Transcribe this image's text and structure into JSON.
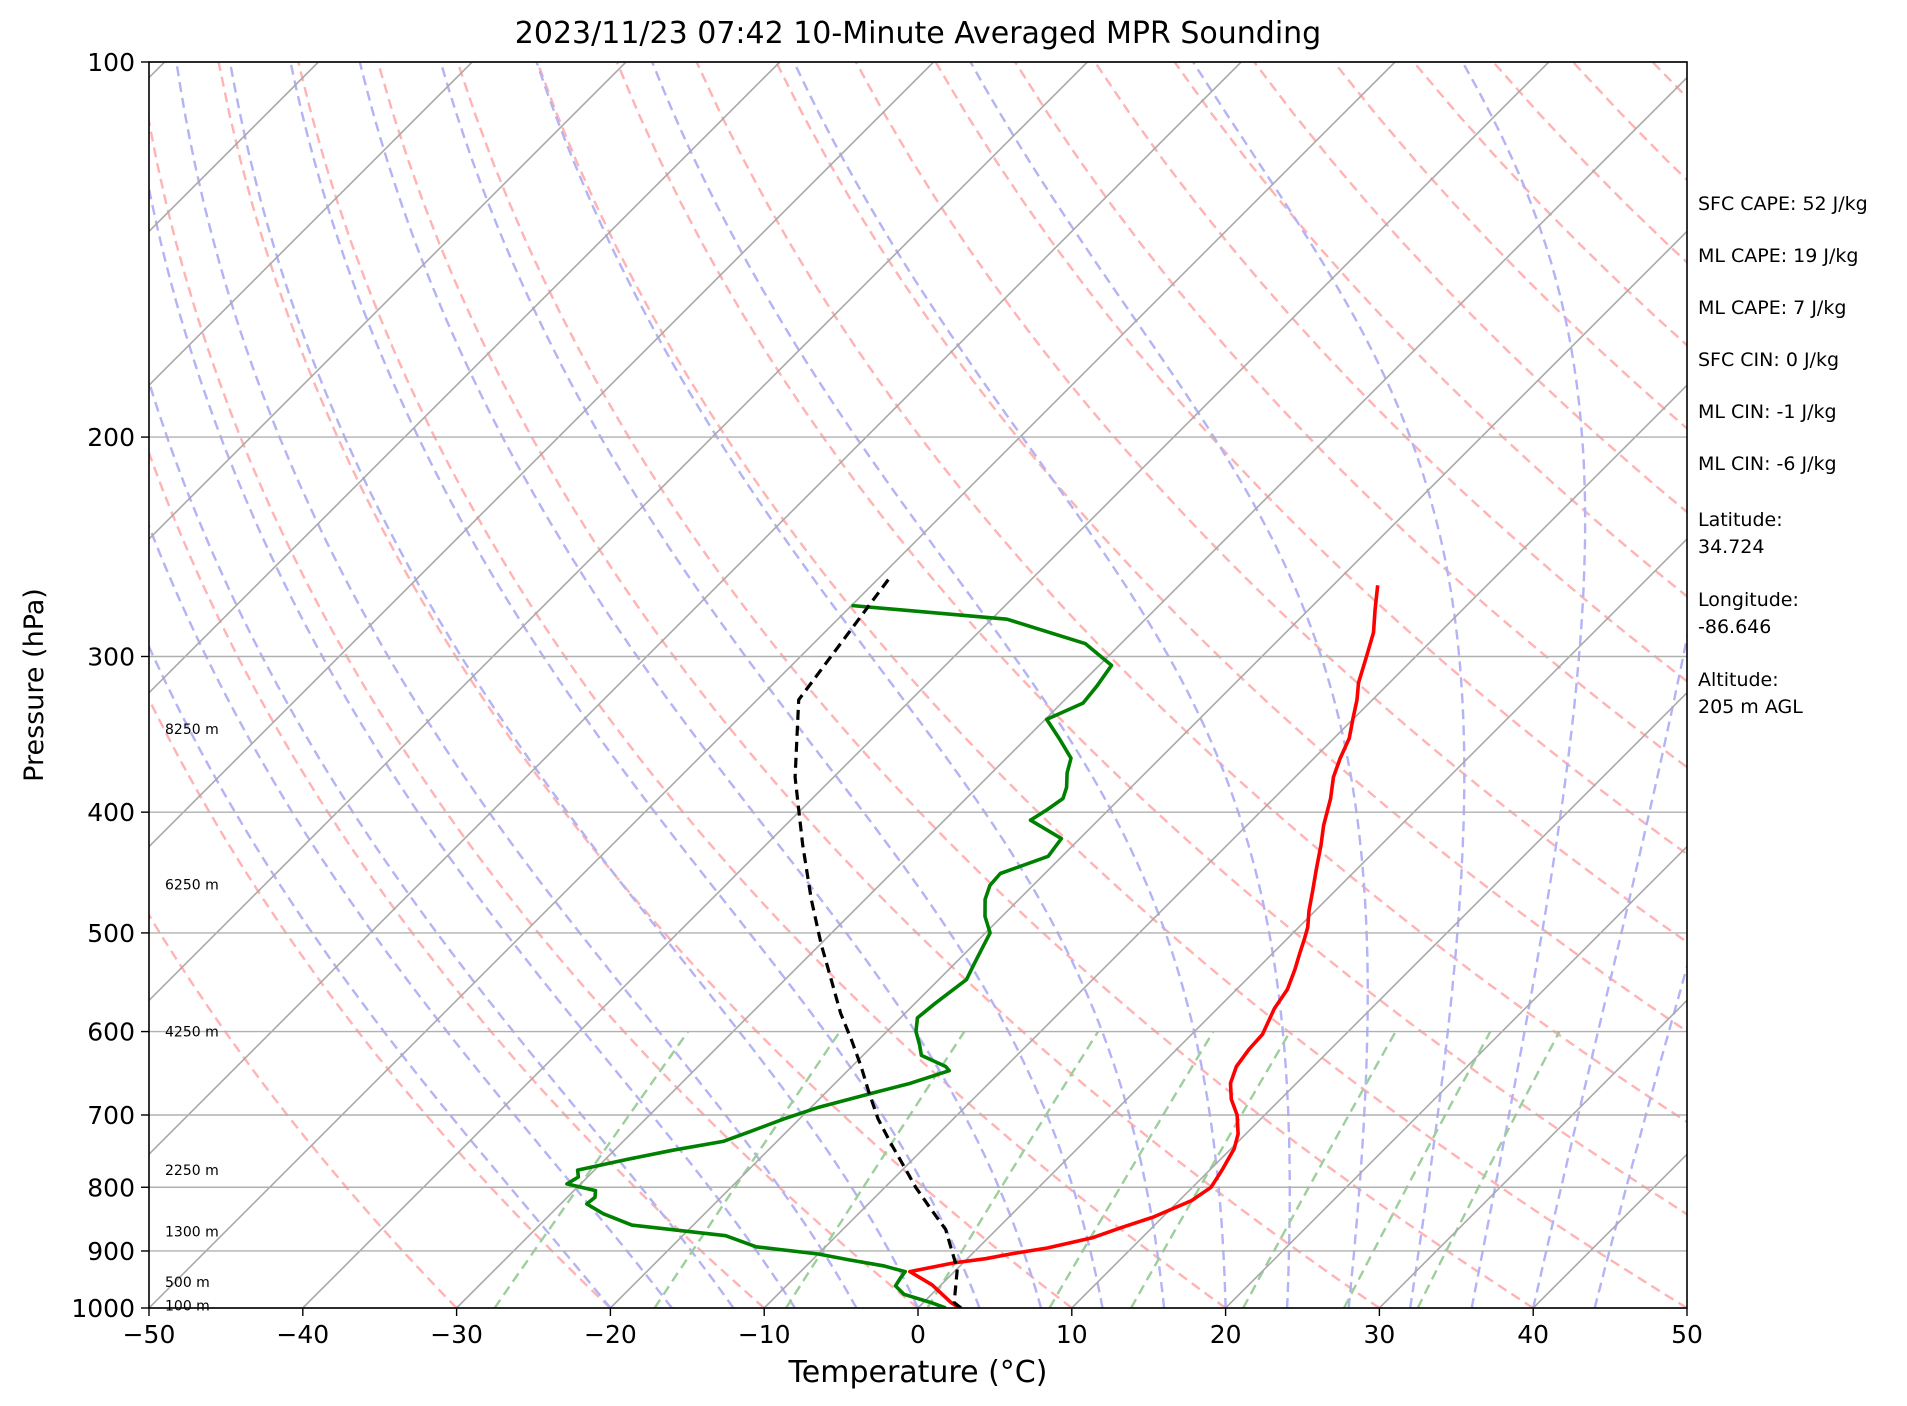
{
  "chart_data": {
    "type": "line",
    "title": "2023/11/23 07:42 10-Minute Averaged MPR Sounding",
    "xlabel": "Temperature (°C)",
    "ylabel": "Pressure (hPa)",
    "xlim": [
      -50,
      50
    ],
    "ylim": [
      1000,
      100
    ],
    "y_scale": "log",
    "x_ticks": [
      -50,
      -40,
      -30,
      -20,
      -10,
      0,
      10,
      20,
      30,
      40,
      50
    ],
    "x_tick_labels": [
      "−50",
      "−40",
      "−30",
      "−20",
      "−10",
      "0",
      "10",
      "20",
      "30",
      "40",
      "50"
    ],
    "y_ticks": [
      100,
      200,
      300,
      400,
      500,
      600,
      700,
      800,
      900,
      1000
    ],
    "y_tick_labels": [
      "100",
      "200",
      "300",
      "400",
      "500",
      "600",
      "700",
      "800",
      "900",
      "1000"
    ],
    "grid": true,
    "background_lines": {
      "isotherm_color": "#a9a9a9",
      "dry_adiabat_color": "#ffb3b3",
      "moist_adiabat_color": "#b3b3f5",
      "mixing_ratio_color": "#9ccf9c"
    },
    "series": [
      {
        "color": "#ff0000",
        "points": [
          [
            2.7,
            1000
          ],
          [
            1.8,
            990
          ],
          [
            -0.6,
            958
          ],
          [
            -2.9,
            935
          ],
          [
            -0.6,
            920
          ],
          [
            1.2,
            913
          ],
          [
            2.5,
            905
          ],
          [
            4.5,
            895
          ],
          [
            6.8,
            878
          ],
          [
            8.0,
            862
          ],
          [
            9.4,
            845
          ],
          [
            10.8,
            820
          ],
          [
            11.2,
            800
          ],
          [
            10.8,
            775
          ],
          [
            10.2,
            745
          ],
          [
            9.5,
            725
          ],
          [
            8.2,
            700
          ],
          [
            6.8,
            680
          ],
          [
            5.7,
            660
          ],
          [
            5.0,
            640
          ],
          [
            4.7,
            620
          ],
          [
            4.6,
            603
          ],
          [
            3.7,
            575
          ],
          [
            3.3,
            555
          ],
          [
            2.5,
            535
          ],
          [
            1.8,
            520
          ],
          [
            1.1,
            505
          ],
          [
            0.6,
            495
          ],
          [
            -0.4,
            480
          ],
          [
            -1.5,
            462
          ],
          [
            -2.6,
            445
          ],
          [
            -3.9,
            425
          ],
          [
            -5.0,
            410
          ],
          [
            -6.3,
            390
          ],
          [
            -7.5,
            375
          ],
          [
            -8.3,
            362
          ],
          [
            -9.0,
            349
          ],
          [
            -10.0,
            337
          ],
          [
            -11.0,
            325
          ],
          [
            -12.0,
            315
          ],
          [
            -13.2,
            300
          ],
          [
            -14.3,
            287
          ],
          [
            -15.7,
            275
          ],
          [
            -17.1,
            263
          ]
        ]
      },
      {
        "color": "#008000",
        "points": [
          [
            1.8,
            1000
          ],
          [
            0.5,
            990
          ],
          [
            -1.8,
            975
          ],
          [
            -2.9,
            960
          ],
          [
            -3.1,
            945
          ],
          [
            -3.2,
            935
          ],
          [
            -5.0,
            925
          ],
          [
            -7.6,
            915
          ],
          [
            -10.0,
            905
          ],
          [
            -14.5,
            893
          ],
          [
            -17.2,
            875
          ],
          [
            -24.0,
            858
          ],
          [
            -26.6,
            840
          ],
          [
            -28.3,
            825
          ],
          [
            -28.2,
            815
          ],
          [
            -28.6,
            805
          ],
          [
            -30.9,
            795
          ],
          [
            -30.6,
            785
          ],
          [
            -31.1,
            775
          ],
          [
            -28.6,
            760
          ],
          [
            -26.2,
            747
          ],
          [
            -23.5,
            735
          ],
          [
            -22.4,
            722
          ],
          [
            -21.0,
            705
          ],
          [
            -19.5,
            690
          ],
          [
            -16.6,
            670
          ],
          [
            -15.1,
            660
          ],
          [
            -13.4,
            645
          ],
          [
            -13.9,
            640
          ],
          [
            -16.2,
            627
          ],
          [
            -17.0,
            615
          ],
          [
            -18.1,
            600
          ],
          [
            -18.9,
            585
          ],
          [
            -18.7,
            570
          ],
          [
            -18.5,
            560
          ],
          [
            -18.2,
            545
          ],
          [
            -18.7,
            530
          ],
          [
            -19.2,
            515
          ],
          [
            -19.7,
            500
          ],
          [
            -21.1,
            485
          ],
          [
            -22.2,
            470
          ],
          [
            -22.8,
            458
          ],
          [
            -22.9,
            448
          ],
          [
            -20.9,
            434
          ],
          [
            -21.2,
            420
          ],
          [
            -24.4,
            406
          ],
          [
            -24.0,
            398
          ],
          [
            -23.7,
            390
          ],
          [
            -24.2,
            382
          ],
          [
            -25.1,
            372
          ],
          [
            -25.8,
            362
          ],
          [
            -27.7,
            350
          ],
          [
            -29.9,
            337
          ],
          [
            -28.6,
            327
          ],
          [
            -28.8,
            317
          ],
          [
            -29.2,
            305
          ],
          [
            -32.3,
            293
          ],
          [
            -39.0,
            280
          ],
          [
            -50.0,
            273
          ]
        ]
      },
      {
        "color": "#000000",
        "dashed": true,
        "points": [
          [
            2.8,
            1000
          ],
          [
            2.0,
            990
          ],
          [
            0.0,
            930
          ],
          [
            -1.5,
            900
          ],
          [
            -3.3,
            865
          ],
          [
            -5.8,
            830
          ],
          [
            -8.0,
            800
          ],
          [
            -10.1,
            770
          ],
          [
            -12.3,
            740
          ],
          [
            -14.9,
            705
          ],
          [
            -17.3,
            670
          ],
          [
            -19.4,
            640
          ],
          [
            -21.7,
            610
          ],
          [
            -24.2,
            580
          ],
          [
            -27.0,
            545
          ],
          [
            -30.0,
            510
          ],
          [
            -33.5,
            470
          ],
          [
            -37.6,
            425
          ],
          [
            -42.5,
            375
          ],
          [
            -47.3,
            325
          ],
          [
            -49.3,
            260
          ]
        ]
      }
    ],
    "height_labels": [
      {
        "text": "100 m",
        "p": 995
      },
      {
        "text": "500 m",
        "p": 953
      },
      {
        "text": "1300 m",
        "p": 868
      },
      {
        "text": "2250 m",
        "p": 775
      },
      {
        "text": "4250 m",
        "p": 600
      },
      {
        "text": "6250 m",
        "p": 457
      },
      {
        "text": "8250 m",
        "p": 343
      }
    ],
    "annotations": [
      "SFC CAPE: 52 J/kg",
      "ML CAPE: 19 J/kg",
      "ML CAPE: 7 J/kg",
      "SFC CIN: 0 J/kg",
      "ML CIN: -1 J/kg",
      "ML CIN: -6 J/kg",
      "Latitude:",
      "34.724",
      "Longitude:",
      "-86.646",
      "Altitude:",
      "205 m AGL"
    ]
  }
}
